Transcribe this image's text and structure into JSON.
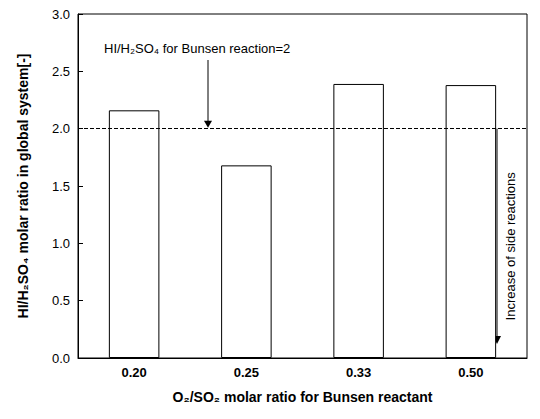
{
  "chart_data": {
    "type": "bar",
    "x_label": "O₂/SO₂ molar ratio for Bunsen reactant",
    "y_label": "HI/H₂SO₄ molar ratio in global system[-]",
    "categories": [
      "0.20",
      "0.25",
      "0.33",
      "0.50"
    ],
    "values": [
      2.16,
      1.68,
      2.39,
      2.38
    ],
    "color": "#ffffff",
    "ylim": [
      0,
      3
    ],
    "yticks": [
      {
        "value": 0,
        "label": "0.0"
      },
      0.5,
      {
        "value": 1,
        "label": "1.0"
      },
      1.5,
      {
        "value": 2,
        "label": "2.0"
      },
      2.5,
      {
        "value": 3,
        "label": "3.0"
      }
    ],
    "grid": false,
    "reference_line": {
      "value": 2,
      "line_style": "dashed"
    },
    "annotations": [
      {
        "text": "HI/H₂SO₄ for Bunsen reaction=2"
      },
      {
        "text": "Increase of side reactions"
      }
    ]
  }
}
